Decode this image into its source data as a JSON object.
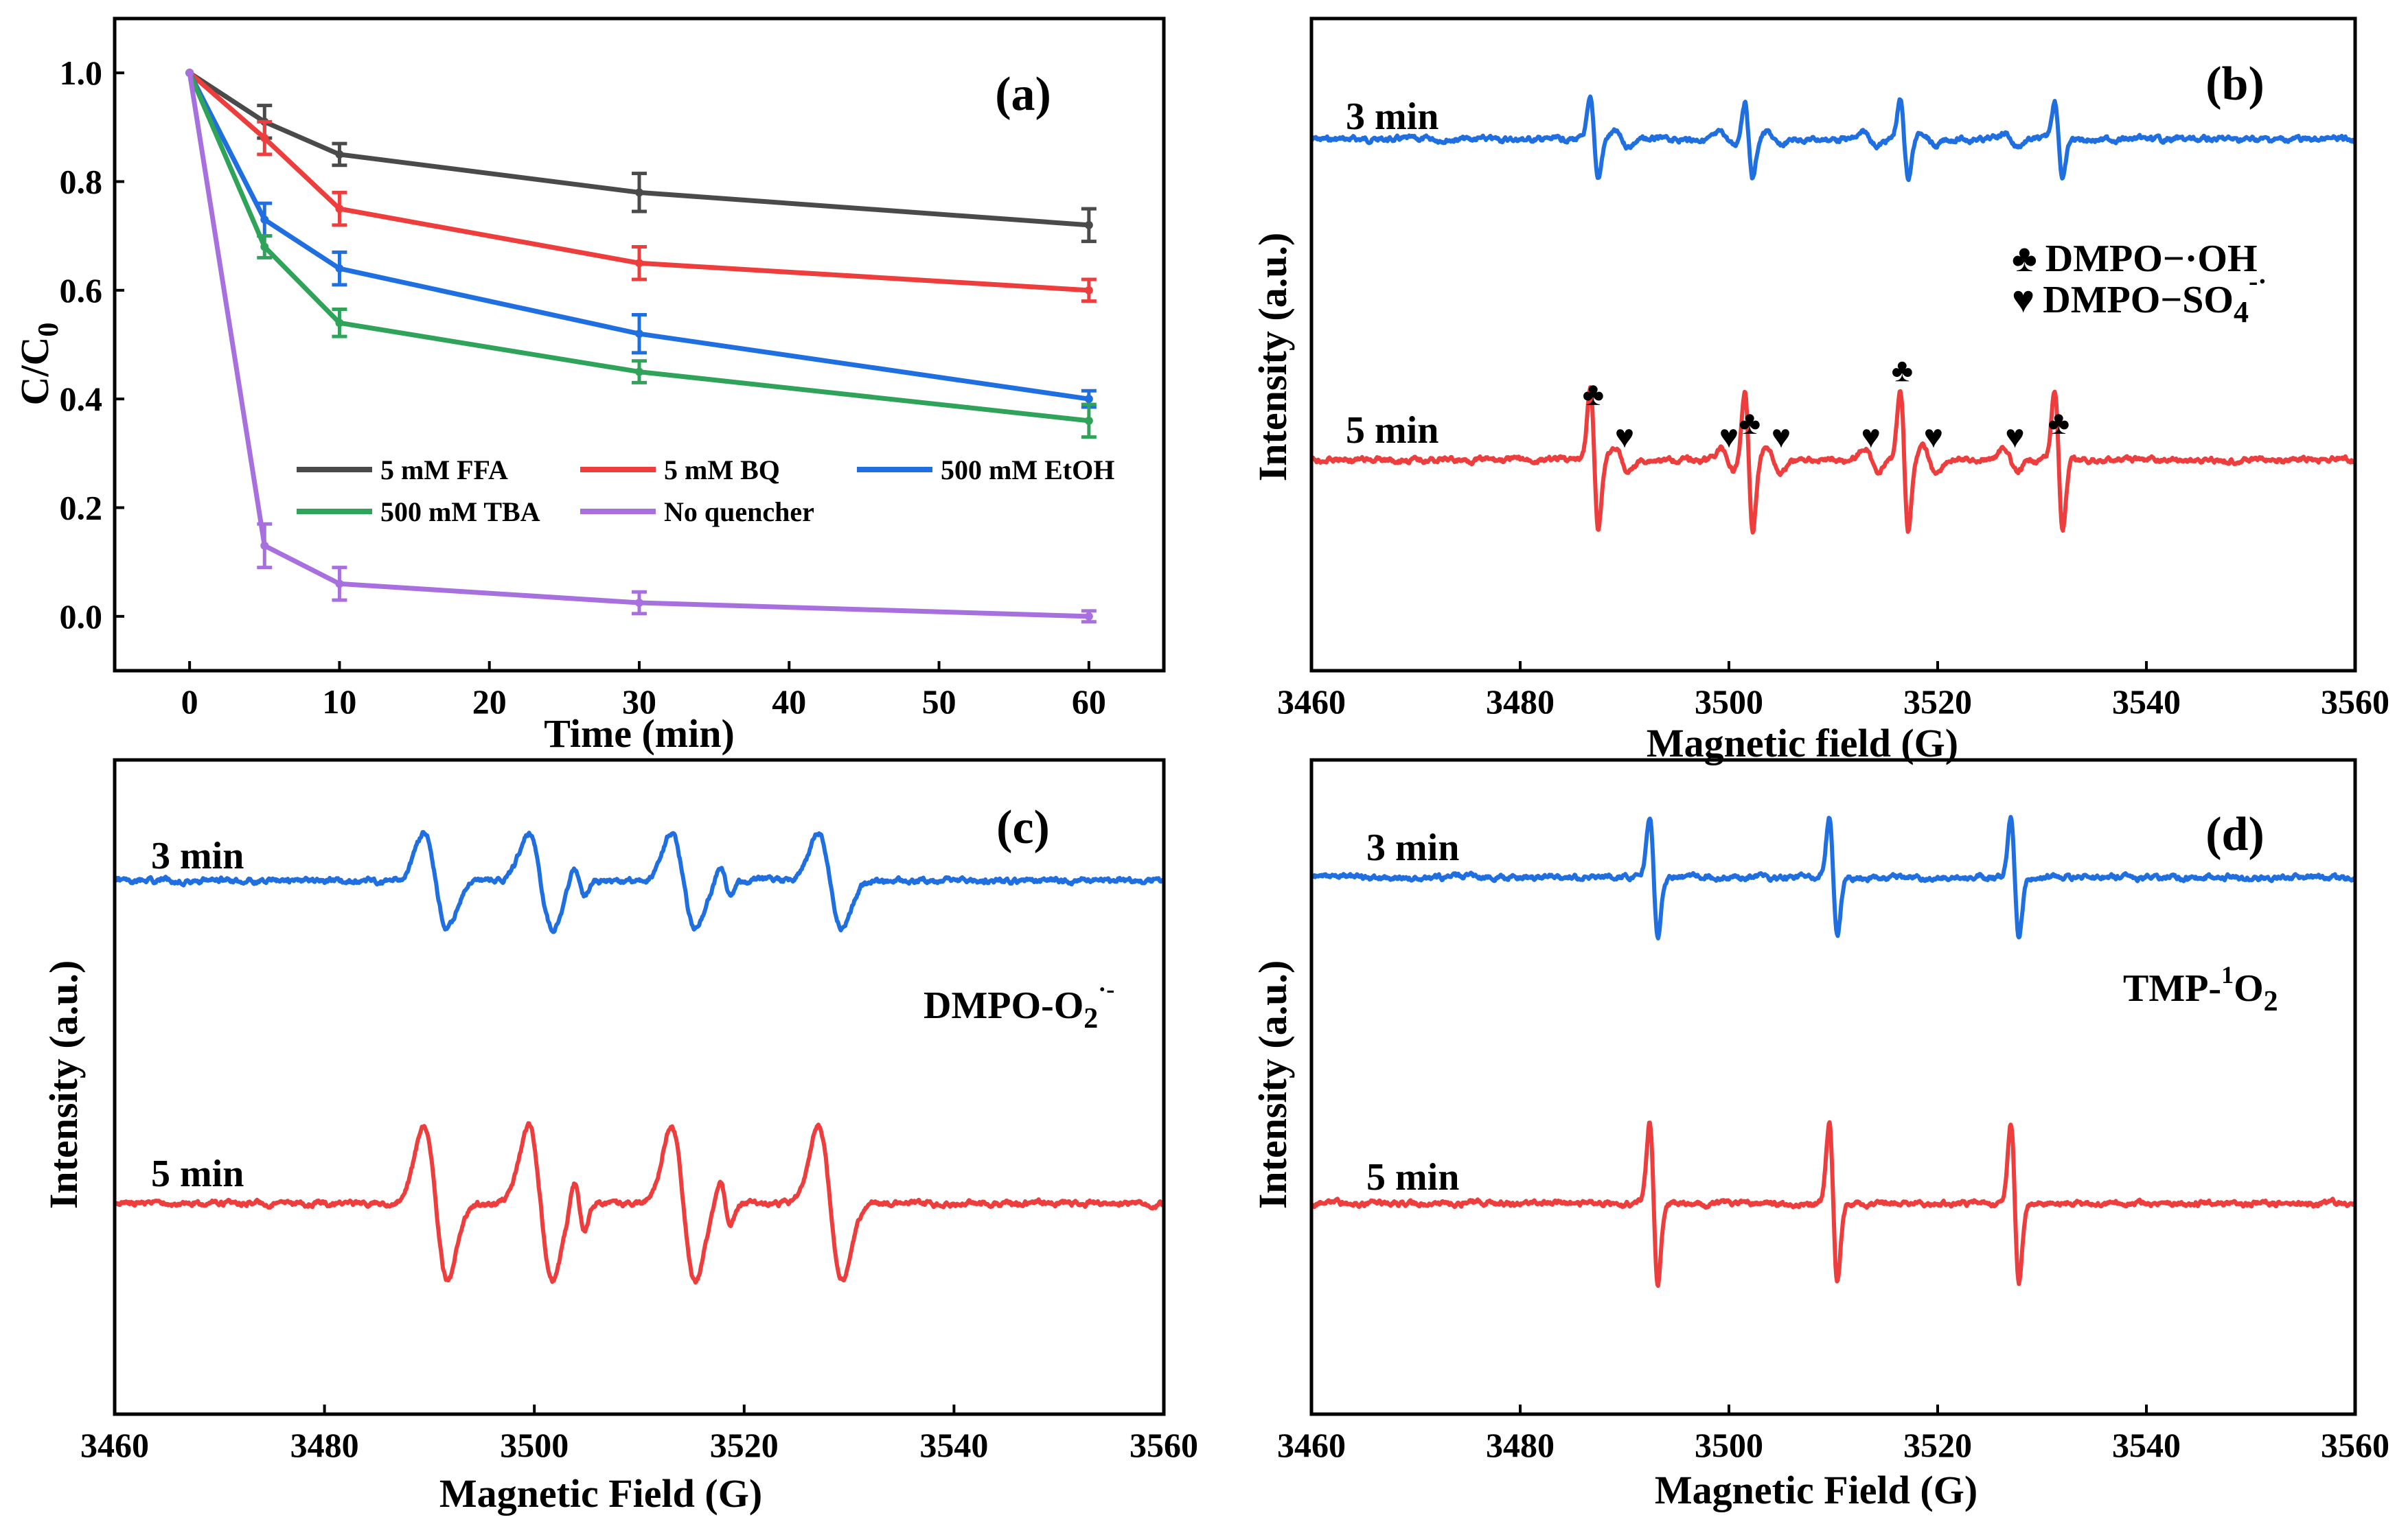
{
  "figure": {
    "panels": [
      {
        "id": "a",
        "letter": "(a)",
        "type": "line",
        "xlabel": "Time (min)",
        "ylabel": "C/C",
        "ylabel_sub": "0",
        "xlim": [
          -5,
          65
        ],
        "ylim": [
          -0.1,
          1.1
        ],
        "xticks": [
          0,
          10,
          20,
          30,
          40,
          50,
          60
        ],
        "yticks": [
          "0.0",
          "0.2",
          "0.4",
          "0.6",
          "0.8",
          "1.0"
        ],
        "x": [
          0,
          5,
          10,
          30,
          60
        ],
        "series": [
          {
            "name": "5 mM FFA",
            "color": "#4a4a4a",
            "values": [
              1.0,
              0.91,
              0.85,
              0.78,
              0.72
            ],
            "errors": [
              0,
              0.03,
              0.02,
              0.035,
              0.03
            ]
          },
          {
            "name": "5 mM BQ",
            "color": "#ee3d3d",
            "values": [
              1.0,
              0.88,
              0.75,
              0.65,
              0.6
            ],
            "errors": [
              0,
              0.03,
              0.03,
              0.03,
              0.02
            ]
          },
          {
            "name": "500 mM EtOH",
            "color": "#1f6fe0",
            "values": [
              1.0,
              0.73,
              0.64,
              0.52,
              0.4
            ],
            "errors": [
              0,
              0.03,
              0.03,
              0.035,
              0.015
            ]
          },
          {
            "name": "500 mM TBA",
            "color": "#2fa35a",
            "values": [
              1.0,
              0.68,
              0.54,
              0.45,
              0.36
            ],
            "errors": [
              0,
              0.02,
              0.025,
              0.02,
              0.03
            ]
          },
          {
            "name": "No quencher",
            "color": "#a86fde",
            "values": [
              1.0,
              0.13,
              0.06,
              0.025,
              0.0
            ],
            "errors": [
              0,
              0.04,
              0.03,
              0.02,
              0.01
            ]
          }
        ]
      },
      {
        "id": "b",
        "letter": "(b)",
        "type": "line",
        "xlabel": "Magnetic field (G)",
        "ylabel": "Intensity (a.u.)",
        "xlim": [
          3460,
          3560
        ],
        "xticks": [
          3460,
          3480,
          3500,
          3520,
          3540,
          3560
        ],
        "spectra": [
          {
            "label": "3 min",
            "color": "#1f6fe0",
            "line_pos": "top",
            "amp": 0.55,
            "signal": "hydroxyl-sulfate"
          },
          {
            "label": "5 min",
            "color": "#ee3d3d",
            "line_pos": "bottom",
            "amp": 1.0,
            "signal": "hydroxyl-sulfate"
          }
        ],
        "legend": [
          {
            "symbol": "♣",
            "text": "DMPO−·OH"
          },
          {
            "symbol": "♥",
            "text": "DMPO−SO",
            "sub": "4",
            "sup": "-·"
          }
        ],
        "markers": [
          {
            "symbol": "♣",
            "field": 3487
          },
          {
            "symbol": "♥",
            "field": 3490
          },
          {
            "symbol": "♥",
            "field": 3500
          },
          {
            "symbol": "♣",
            "field": 3502
          },
          {
            "symbol": "♥",
            "field": 3505
          },
          {
            "symbol": "♥",
            "field": 3513.6
          },
          {
            "symbol": "♣",
            "field": 3516.6
          },
          {
            "symbol": "♥",
            "field": 3519.6
          },
          {
            "symbol": "♥",
            "field": 3527.4
          },
          {
            "symbol": "♣",
            "field": 3531.6
          }
        ]
      },
      {
        "id": "c",
        "letter": "(c)",
        "type": "line",
        "xlabel": "Magnetic Field (G)",
        "ylabel": "Intensity (a.u.)",
        "xlim": [
          3460,
          3560
        ],
        "xticks": [
          3460,
          3480,
          3500,
          3520,
          3540,
          3560
        ],
        "species_text": "DMPO-O",
        "species_sub": "2",
        "species_sup": "·-",
        "spectra": [
          {
            "label": "3 min",
            "color": "#1f6fe0",
            "line_pos": "top",
            "amp": 0.62,
            "signal": "superoxide"
          },
          {
            "label": "5 min",
            "color": "#ee3d3d",
            "line_pos": "bottom",
            "amp": 1.0,
            "signal": "superoxide"
          }
        ]
      },
      {
        "id": "d",
        "letter": "(d)",
        "type": "line",
        "xlabel": "Magnetic Field (G)",
        "ylabel": "Intensity (a.u.)",
        "xlim": [
          3460,
          3560
        ],
        "xticks": [
          3460,
          3480,
          3500,
          3520,
          3540,
          3560
        ],
        "species_text": "TMP-",
        "species_sup": "1",
        "species_text2": "O",
        "species_sub": "2",
        "spectra": [
          {
            "label": "3 min",
            "color": "#1f6fe0",
            "line_pos": "top",
            "amp": 0.75,
            "signal": "singlet-oxygen"
          },
          {
            "label": "5 min",
            "color": "#ee3d3d",
            "line_pos": "bottom",
            "amp": 1.0,
            "signal": "singlet-oxygen"
          }
        ]
      }
    ]
  }
}
